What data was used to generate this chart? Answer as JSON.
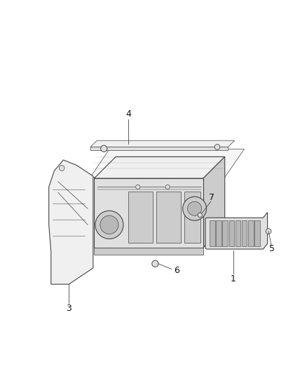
{
  "background_color": "#ffffff",
  "fig_width": 4.38,
  "fig_height": 5.33,
  "dpi": 100,
  "line_color": "#444444",
  "fill_light": "#f0f0f0",
  "fill_mid": "#e0e0e0",
  "fill_dark": "#cccccc",
  "fill_darker": "#b8b8b8"
}
